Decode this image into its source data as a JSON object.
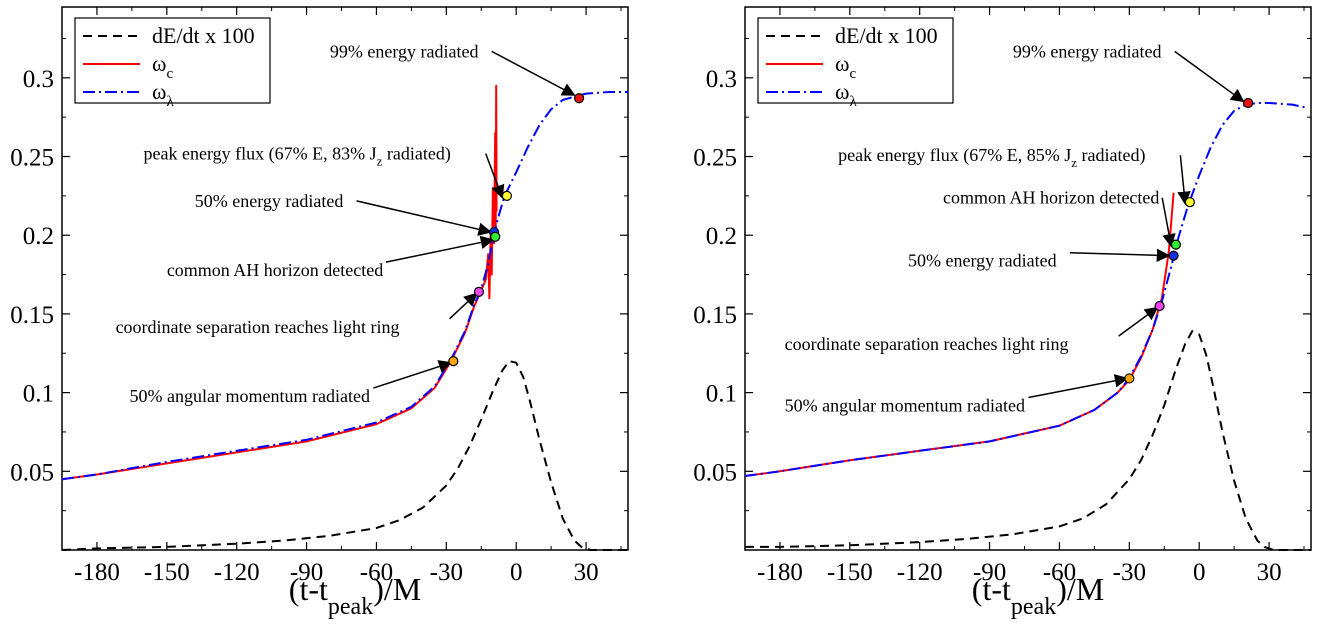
{
  "chart_data": [
    {
      "type": "line",
      "xlabel": "(t-t",
      "xlabel_sub": "peak",
      "xlabel_tail": ")/M",
      "xlim": [
        -195,
        48
      ],
      "ylim": [
        0,
        0.345
      ],
      "xticks": [
        -180,
        -150,
        -120,
        -90,
        -60,
        -30,
        0,
        30
      ],
      "yticks": [
        0.05,
        0.1,
        0.15,
        0.2,
        0.25,
        0.3
      ],
      "grid": false,
      "legend_position": "top-left",
      "legend": [
        {
          "label": "dE/dt x 100",
          "sub": "",
          "color": "#000000",
          "style": "dashed"
        },
        {
          "label": "ω",
          "sub": "c",
          "color": "#ff0000",
          "style": "solid"
        },
        {
          "label": "ω",
          "sub": "λ",
          "color": "#0000ff",
          "style": "dashdot"
        }
      ],
      "series": [
        {
          "name": "dE/dt x 100",
          "color": "#000000",
          "dash": "9,6",
          "x": [
            -195,
            -180,
            -150,
            -120,
            -100,
            -80,
            -60,
            -50,
            -40,
            -30,
            -25,
            -20,
            -15,
            -10,
            -6,
            -3,
            0,
            3,
            6,
            10,
            15,
            20,
            25,
            28,
            32,
            48
          ],
          "y": [
            0.0,
            0.001,
            0.002,
            0.004,
            0.006,
            0.009,
            0.014,
            0.019,
            0.027,
            0.041,
            0.052,
            0.066,
            0.083,
            0.101,
            0.114,
            0.12,
            0.119,
            0.11,
            0.094,
            0.07,
            0.043,
            0.02,
            0.006,
            0.002,
            0.0,
            0.0
          ]
        },
        {
          "name": "ω_c",
          "color": "#ff0000",
          "dash": "",
          "x": [
            -195,
            -180,
            -150,
            -120,
            -90,
            -60,
            -45,
            -35,
            -28,
            -22,
            -18,
            -15,
            -13,
            -12,
            -11.5,
            -11,
            -10.5,
            -10,
            -9.5,
            -9,
            -8.8,
            -8.6,
            -8.4
          ],
          "y": [
            0.045,
            0.048,
            0.055,
            0.062,
            0.069,
            0.08,
            0.09,
            0.103,
            0.12,
            0.138,
            0.155,
            0.165,
            0.172,
            0.188,
            0.16,
            0.2,
            0.175,
            0.23,
            0.195,
            0.265,
            0.205,
            0.295,
            0.215
          ]
        },
        {
          "name": "ω_λ",
          "color": "#0000ff",
          "dash": "12,4,2,4",
          "x": [
            -195,
            -180,
            -150,
            -120,
            -90,
            -60,
            -45,
            -35,
            -28,
            -22,
            -18,
            -15,
            -12,
            -10,
            -8,
            -5,
            0,
            5,
            10,
            15,
            20,
            25,
            30,
            40,
            48
          ],
          "y": [
            0.045,
            0.048,
            0.056,
            0.063,
            0.07,
            0.081,
            0.091,
            0.104,
            0.121,
            0.139,
            0.156,
            0.166,
            0.182,
            0.197,
            0.21,
            0.225,
            0.24,
            0.256,
            0.27,
            0.28,
            0.286,
            0.288,
            0.29,
            0.291,
            0.291
          ]
        }
      ],
      "markers": [
        {
          "x": -27,
          "y": 0.12,
          "color": "#ffa500"
        },
        {
          "x": -16,
          "y": 0.164,
          "color": "#ee44ee"
        },
        {
          "x": -9.5,
          "y": 0.202,
          "color": "#1530e0"
        },
        {
          "x": -9,
          "y": 0.199,
          "color": "#33ee33"
        },
        {
          "x": -4,
          "y": 0.225,
          "color": "#ffff33"
        },
        {
          "x": 27,
          "y": 0.287,
          "color": "#ee1111"
        }
      ],
      "annotations": [
        {
          "text": "99% energy radiated",
          "text_x": -80,
          "text_y": 0.313,
          "arrow_to": [
            25,
            0.289
          ]
        },
        {
          "text": "peak energy flux (67% E, 83% J",
          "sub": "z",
          "tail": " radiated)",
          "text_x": -160,
          "text_y": 0.248,
          "arrow_to": [
            -6,
            0.224
          ]
        },
        {
          "text": "50% energy radiated",
          "text_x": -138,
          "text_y": 0.218,
          "arrow_to": [
            -11,
            0.202
          ]
        },
        {
          "text": "common AH horizon detected",
          "text_x": -150,
          "text_y": 0.174,
          "arrow_to": [
            -10,
            0.197
          ]
        },
        {
          "text": "coordinate separation reaches light ring",
          "text_x": -172,
          "text_y": 0.138,
          "arrow_to": [
            -17,
            0.163
          ]
        },
        {
          "text": "50% angular momentum radiated",
          "text_x": -166,
          "text_y": 0.094,
          "arrow_to": [
            -28,
            0.119
          ]
        }
      ]
    },
    {
      "type": "line",
      "xlabel": "(t-t",
      "xlabel_sub": "peak",
      "xlabel_tail": ")/M",
      "xlim": [
        -195,
        48
      ],
      "ylim": [
        0,
        0.345
      ],
      "xticks": [
        -180,
        -150,
        -120,
        -90,
        -60,
        -30,
        0,
        30
      ],
      "yticks": [
        0.05,
        0.1,
        0.15,
        0.2,
        0.25,
        0.3
      ],
      "grid": false,
      "legend_position": "top-left",
      "legend": [
        {
          "label": "dE/dt x 100",
          "sub": "",
          "color": "#000000",
          "style": "dashed"
        },
        {
          "label": "ω",
          "sub": "c",
          "color": "#ff0000",
          "style": "solid"
        },
        {
          "label": "ω",
          "sub": "λ",
          "color": "#0000ff",
          "style": "dashdot"
        }
      ],
      "series": [
        {
          "name": "dE/dt x 100",
          "color": "#000000",
          "dash": "9,6",
          "x": [
            -195,
            -180,
            -150,
            -120,
            -100,
            -80,
            -60,
            -50,
            -40,
            -30,
            -25,
            -20,
            -15,
            -10,
            -6,
            -3,
            0,
            3,
            6,
            10,
            15,
            20,
            25,
            28,
            32,
            48
          ],
          "y": [
            0.002,
            0.002,
            0.003,
            0.005,
            0.007,
            0.01,
            0.015,
            0.02,
            0.029,
            0.045,
            0.057,
            0.073,
            0.092,
            0.115,
            0.131,
            0.139,
            0.137,
            0.124,
            0.104,
            0.075,
            0.044,
            0.02,
            0.006,
            0.002,
            0.0,
            0.0
          ]
        },
        {
          "name": "ω_c",
          "color": "#ff0000",
          "dash": "",
          "x": [
            -195,
            -180,
            -150,
            -120,
            -90,
            -60,
            -45,
            -35,
            -30,
            -25,
            -20,
            -16,
            -13,
            -11
          ],
          "y": [
            0.047,
            0.05,
            0.057,
            0.063,
            0.069,
            0.079,
            0.089,
            0.1,
            0.108,
            0.122,
            0.14,
            0.16,
            0.19,
            0.227
          ]
        },
        {
          "name": "ω_λ",
          "color": "#0000ff",
          "dash": "12,4,2,4",
          "x": [
            -195,
            -180,
            -150,
            -120,
            -90,
            -60,
            -45,
            -35,
            -30,
            -25,
            -20,
            -16,
            -12,
            -9,
            -5,
            0,
            5,
            10,
            15,
            20,
            25,
            30,
            40,
            46
          ],
          "y": [
            0.047,
            0.05,
            0.057,
            0.063,
            0.069,
            0.079,
            0.089,
            0.1,
            0.109,
            0.123,
            0.14,
            0.158,
            0.18,
            0.198,
            0.218,
            0.238,
            0.256,
            0.27,
            0.279,
            0.283,
            0.284,
            0.284,
            0.283,
            0.281
          ]
        }
      ],
      "markers": [
        {
          "x": -30,
          "y": 0.109,
          "color": "#ffa500"
        },
        {
          "x": -17,
          "y": 0.155,
          "color": "#ee44ee"
        },
        {
          "x": -11,
          "y": 0.187,
          "color": "#1530e0"
        },
        {
          "x": -10,
          "y": 0.194,
          "color": "#33ee33"
        },
        {
          "x": -4,
          "y": 0.221,
          "color": "#ffff33"
        },
        {
          "x": 21,
          "y": 0.284,
          "color": "#ee1111"
        }
      ],
      "annotations": [
        {
          "text": "99% energy radiated",
          "text_x": -80,
          "text_y": 0.313,
          "arrow_to": [
            19,
            0.285
          ]
        },
        {
          "text": "peak energy flux (67% E, 85% J",
          "sub": "z",
          "tail": " radiated)",
          "text_x": -155,
          "text_y": 0.247,
          "arrow_to": [
            -6,
            0.22
          ]
        },
        {
          "text": "common AH horizon detected",
          "text_x": -110,
          "text_y": 0.22,
          "arrow_to": [
            -12,
            0.193
          ]
        },
        {
          "text": "50% energy radiated",
          "text_x": -125,
          "text_y": 0.18,
          "arrow_to": [
            -13,
            0.187
          ]
        },
        {
          "text": "coordinate separation reaches light ring",
          "text_x": -178,
          "text_y": 0.127,
          "arrow_to": [
            -18,
            0.154
          ]
        },
        {
          "text": "50% angular momentum radiated",
          "text_x": -178,
          "text_y": 0.088,
          "arrow_to": [
            -31,
            0.109
          ]
        }
      ]
    }
  ]
}
